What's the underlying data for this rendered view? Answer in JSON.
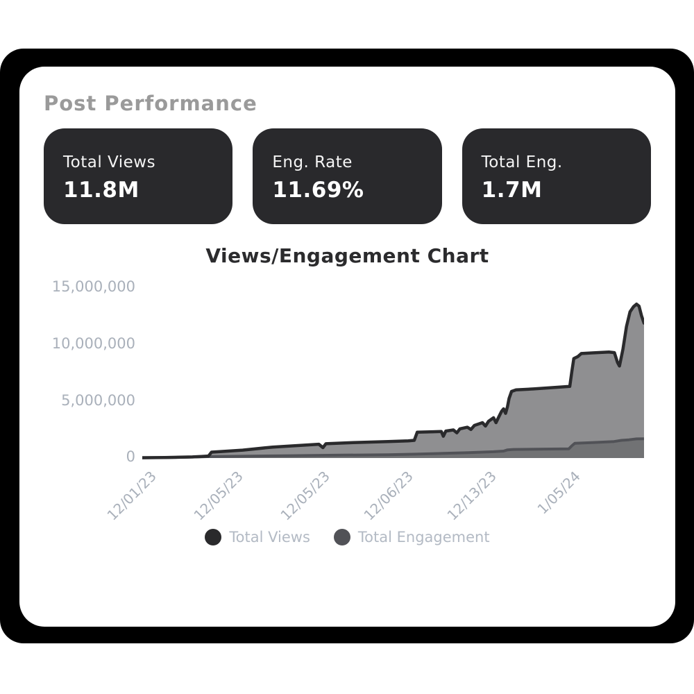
{
  "panel": {
    "title": "Post Performance"
  },
  "stats": [
    {
      "label": "Total Views",
      "value": "11.8M"
    },
    {
      "label": "Eng. Rate",
      "value": "11.69%"
    },
    {
      "label": "Total Eng.",
      "value": "1.7M"
    }
  ],
  "colors": {
    "frame": "#000000",
    "panel_bg": "#ffffff",
    "stat_card_bg": "#29292c",
    "panel_title": "#9a9a9a",
    "chart_title": "#2b2b2d",
    "axis_label": "#a9b0ba",
    "legend_text": "#b3bac4"
  },
  "chart_data": {
    "type": "area",
    "title": "Views/Engagement Chart",
    "ylim": [
      0,
      15000000
    ],
    "grid": false,
    "legend_position": "bottom",
    "y_tick_labels": [
      "15,000,000",
      "10,000,000",
      "5,000,000",
      "0"
    ],
    "y_tick_values": [
      15000000,
      10000000,
      5000000,
      0
    ],
    "x_ticks": [
      {
        "label": "12/01/23",
        "pos": 0.0
      },
      {
        "label": "12/05/23",
        "pos": 0.173
      },
      {
        "label": "12/05/23",
        "pos": 0.346
      },
      {
        "label": "12/06/23",
        "pos": 0.512
      },
      {
        "label": "12/13/23",
        "pos": 0.678
      },
      {
        "label": "1/05/24",
        "pos": 0.845
      }
    ],
    "series": [
      {
        "name": "Total Views",
        "line_color": "#2a2a2c",
        "fill_color": "#8f8f91",
        "final_value": 11800000,
        "points": [
          [
            0.0,
            30000
          ],
          [
            0.045,
            50000
          ],
          [
            0.1,
            100000
          ],
          [
            0.118,
            140000
          ],
          [
            0.132,
            180000
          ],
          [
            0.138,
            520000
          ],
          [
            0.16,
            580000
          ],
          [
            0.2,
            700000
          ],
          [
            0.26,
            970000
          ],
          [
            0.31,
            1100000
          ],
          [
            0.352,
            1220000
          ],
          [
            0.36,
            920000
          ],
          [
            0.366,
            1260000
          ],
          [
            0.42,
            1360000
          ],
          [
            0.49,
            1460000
          ],
          [
            0.53,
            1520000
          ],
          [
            0.542,
            1560000
          ],
          [
            0.548,
            2280000
          ],
          [
            0.58,
            2320000
          ],
          [
            0.596,
            2340000
          ],
          [
            0.6,
            1920000
          ],
          [
            0.605,
            2380000
          ],
          [
            0.62,
            2480000
          ],
          [
            0.627,
            2220000
          ],
          [
            0.633,
            2580000
          ],
          [
            0.648,
            2720000
          ],
          [
            0.655,
            2520000
          ],
          [
            0.662,
            2880000
          ],
          [
            0.678,
            3120000
          ],
          [
            0.684,
            2820000
          ],
          [
            0.69,
            3240000
          ],
          [
            0.7,
            3560000
          ],
          [
            0.705,
            3120000
          ],
          [
            0.711,
            3680000
          ],
          [
            0.716,
            4120000
          ],
          [
            0.72,
            4340000
          ],
          [
            0.724,
            3940000
          ],
          [
            0.728,
            4550000
          ],
          [
            0.731,
            5250000
          ],
          [
            0.736,
            5880000
          ],
          [
            0.745,
            6020000
          ],
          [
            0.78,
            6100000
          ],
          [
            0.82,
            6220000
          ],
          [
            0.852,
            6320000
          ],
          [
            0.856,
            7600000
          ],
          [
            0.86,
            8780000
          ],
          [
            0.868,
            8950000
          ],
          [
            0.875,
            9220000
          ],
          [
            0.9,
            9280000
          ],
          [
            0.93,
            9350000
          ],
          [
            0.941,
            9300000
          ],
          [
            0.947,
            8450000
          ],
          [
            0.951,
            8120000
          ],
          [
            0.958,
            9600000
          ],
          [
            0.965,
            11600000
          ],
          [
            0.972,
            12900000
          ],
          [
            0.979,
            13350000
          ],
          [
            0.985,
            13580000
          ],
          [
            0.99,
            13400000
          ],
          [
            0.995,
            12550000
          ],
          [
            1.0,
            11900000
          ]
        ]
      },
      {
        "name": "Total Engagement",
        "line_color": "#515257",
        "fill_color": "#717274",
        "final_value": 1700000,
        "points": [
          [
            0.0,
            20000
          ],
          [
            0.08,
            60000
          ],
          [
            0.13,
            120000
          ],
          [
            0.2,
            160000
          ],
          [
            0.3,
            210000
          ],
          [
            0.4,
            260000
          ],
          [
            0.49,
            290000
          ],
          [
            0.545,
            340000
          ],
          [
            0.6,
            410000
          ],
          [
            0.65,
            470000
          ],
          [
            0.7,
            560000
          ],
          [
            0.72,
            610000
          ],
          [
            0.728,
            720000
          ],
          [
            0.74,
            760000
          ],
          [
            0.8,
            790000
          ],
          [
            0.85,
            810000
          ],
          [
            0.856,
            1080000
          ],
          [
            0.862,
            1300000
          ],
          [
            0.9,
            1370000
          ],
          [
            0.94,
            1460000
          ],
          [
            0.955,
            1560000
          ],
          [
            0.97,
            1610000
          ],
          [
            0.985,
            1690000
          ],
          [
            1.0,
            1700000
          ]
        ]
      }
    ],
    "legend": [
      {
        "label": "Total Views",
        "color": "#2a2a2c"
      },
      {
        "label": "Total Engagement",
        "color": "#515257"
      }
    ]
  }
}
